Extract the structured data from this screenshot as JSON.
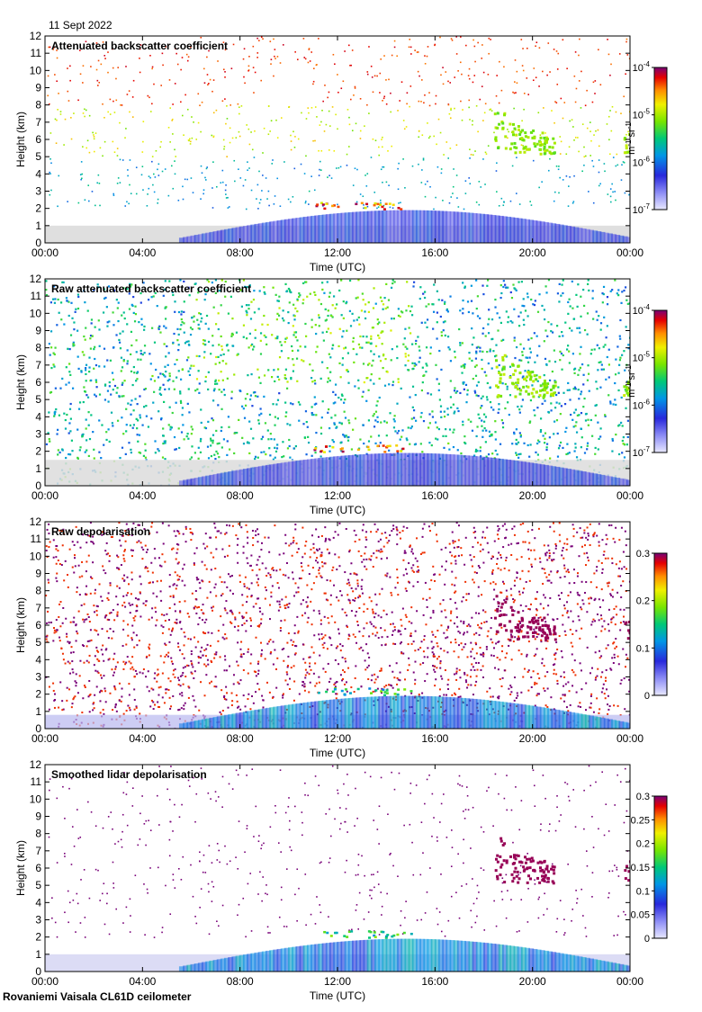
{
  "date": "11 Sept 2022",
  "footer": "Rovaniemi Vaisala CL61D ceilometer",
  "chart_data": [
    {
      "type": "heatmap",
      "title": "Attenuated backscatter coefficient",
      "xlabel": "Time (UTC)",
      "ylabel": "Height (km)",
      "x_ticks": [
        "00:00",
        "04:00",
        "08:00",
        "12:00",
        "16:00",
        "20:00",
        "00:00"
      ],
      "y_ticks": [
        "0",
        "1",
        "2",
        "3",
        "4",
        "5",
        "6",
        "7",
        "8",
        "9",
        "10",
        "11",
        "12"
      ],
      "xlim_hours": [
        0,
        24
      ],
      "ylim_km": [
        0,
        12
      ],
      "colorbar": {
        "scale": "log",
        "range": [
          1e-07,
          0.0001
        ],
        "unit_base": "m",
        "unit_base_exp": "-1",
        "unit_sr": " sr",
        "unit_sr_exp": "-1",
        "ticks": [
          {
            "base": "10",
            "exp": "-4",
            "value": 0.0001
          },
          {
            "base": "10",
            "exp": "-5",
            "value": 1e-05
          },
          {
            "base": "10",
            "exp": "-6",
            "value": 1e-06
          },
          {
            "base": "10",
            "exp": "-7",
            "value": 1e-07
          }
        ]
      },
      "grid": false
    },
    {
      "type": "heatmap",
      "title": "Raw attenuated backscatter coefficient",
      "xlabel": "Time (UTC)",
      "ylabel": "Height (km)",
      "x_ticks": [
        "00:00",
        "04:00",
        "08:00",
        "12:00",
        "16:00",
        "20:00",
        "00:00"
      ],
      "y_ticks": [
        "0",
        "1",
        "2",
        "3",
        "4",
        "5",
        "6",
        "7",
        "8",
        "9",
        "10",
        "11",
        "12"
      ],
      "xlim_hours": [
        0,
        24
      ],
      "ylim_km": [
        0,
        12
      ],
      "colorbar": {
        "scale": "log",
        "range": [
          1e-07,
          0.0001
        ],
        "unit_base": "m",
        "unit_base_exp": "-1",
        "unit_sr": " sr",
        "unit_sr_exp": "-1",
        "ticks": [
          {
            "base": "10",
            "exp": "-4",
            "value": 0.0001
          },
          {
            "base": "10",
            "exp": "-5",
            "value": 1e-05
          },
          {
            "base": "10",
            "exp": "-6",
            "value": 1e-06
          },
          {
            "base": "10",
            "exp": "-7",
            "value": 1e-07
          }
        ]
      },
      "grid": false
    },
    {
      "type": "heatmap",
      "title": "Raw depolarisation",
      "xlabel": "Time (UTC)",
      "ylabel": "Height (km)",
      "x_ticks": [
        "00:00",
        "04:00",
        "08:00",
        "12:00",
        "16:00",
        "20:00",
        "00:00"
      ],
      "y_ticks": [
        "0",
        "1",
        "2",
        "3",
        "4",
        "5",
        "6",
        "7",
        "8",
        "9",
        "10",
        "11",
        "12"
      ],
      "xlim_hours": [
        0,
        24
      ],
      "ylim_km": [
        0,
        12
      ],
      "colorbar": {
        "scale": "linear",
        "range": [
          0,
          0.3
        ],
        "ticks": [
          {
            "label": "0.3",
            "value": 0.3
          },
          {
            "label": "0.2",
            "value": 0.2
          },
          {
            "label": "0.1",
            "value": 0.1
          },
          {
            "label": "0",
            "value": 0
          }
        ]
      },
      "grid": false
    },
    {
      "type": "heatmap",
      "title": "Smoothed lidar depolarisation",
      "xlabel": "Time (UTC)",
      "ylabel": "Height (km)",
      "x_ticks": [
        "00:00",
        "04:00",
        "08:00",
        "12:00",
        "16:00",
        "20:00",
        "00:00"
      ],
      "y_ticks": [
        "0",
        "1",
        "2",
        "3",
        "4",
        "5",
        "6",
        "7",
        "8",
        "9",
        "10",
        "11",
        "12"
      ],
      "xlim_hours": [
        0,
        24
      ],
      "ylim_km": [
        0,
        12
      ],
      "colorbar": {
        "scale": "linear",
        "range": [
          0,
          0.3
        ],
        "ticks": [
          {
            "label": "0.3",
            "value": 0.3
          },
          {
            "label": "0.25",
            "value": 0.25
          },
          {
            "label": "0.2",
            "value": 0.2
          },
          {
            "label": "0.15",
            "value": 0.15
          },
          {
            "label": "0.1",
            "value": 0.1
          },
          {
            "label": "0.05",
            "value": 0.05
          },
          {
            "label": "0",
            "value": 0
          }
        ]
      },
      "grid": false
    }
  ]
}
